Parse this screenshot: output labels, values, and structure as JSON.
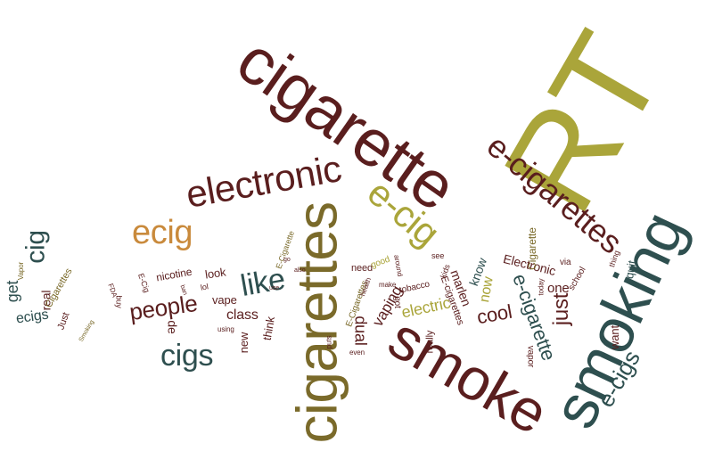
{
  "colors": {
    "maroon": "#5a1e1e",
    "olive": "#aaa53a",
    "teal": "#2e4f4f",
    "tan": "#c98a3c"
  },
  "words": {
    "rt": "RT",
    "cigarette": "cigarette",
    "smoking": "smoking",
    "cigarettes": "cigarettes",
    "smoke": "smoke",
    "electronic": "electronic",
    "ecig_hyphen": "e-cig",
    "ecigarettes": "e-cigarettes",
    "ecig": "ecig",
    "cigs": "cigs",
    "like": "like",
    "people": "people",
    "cig": "cig",
    "ecigs_hyphen": "e-cigs",
    "ecigarette": "e-cigarette",
    "just": "just",
    "cool": "cool",
    "electric": "electric",
    "class": "class",
    "ecigs": "ecigs",
    "get": "get",
    "dual": "dual",
    "vaping": "vaping",
    "now": "now",
    "one": "one",
    "vape": "vape",
    "think": "think",
    "new": "new",
    "de": "de",
    "look": "look",
    "Electronic": "Electronic",
    "Cigarette": "Cigarette",
    "Cigarettes": "Cigarettes",
    "know": "know",
    "quit": "quit",
    "want": "want",
    "marlen": "marlen",
    "really": "really",
    "nicotine": "nicotine",
    "need": "need",
    "real": "real",
    "Just": "Just",
    "vapor": "vapor",
    "buy": "buy",
    "via": "via",
    "school": "school",
    "tobacco": "tobacco",
    "got": "got",
    "good": "good",
    "E-cigarettes": "E-cigarettes",
    "E-Cigarettes": "E-Cigarettes",
    "E-Cigarette": "E-Cigarette",
    "E-Cig": "E-Cig",
    "see": "see",
    "kids": "kids",
    "lol": "lol",
    "thing": "thing",
    "use": "use",
    "even": "even",
    "Vapor": "Vapor",
    "health": "health",
    "today": "today",
    "using": "using",
    "around": "around",
    "also": "also",
    "FDA": "FDA",
    "make": "make",
    "go": "go",
    "puts": "puts",
    "Smoking": "Smoking",
    "ban": "ban"
  }
}
